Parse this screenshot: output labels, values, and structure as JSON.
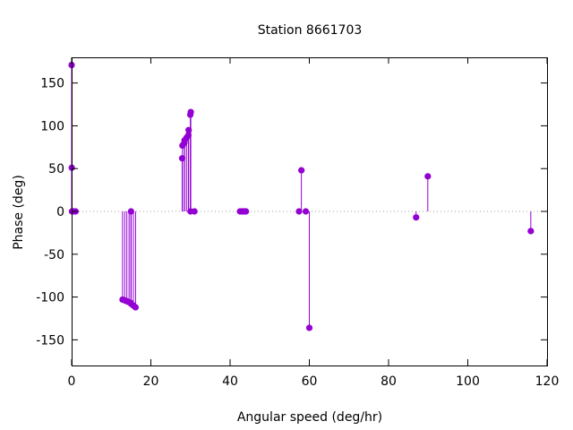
{
  "chart_data": {
    "type": "scatter",
    "style": "impulses-with-points",
    "title": "Station 8661703",
    "xlabel": "Angular speed (deg/hr)",
    "ylabel": "Phase (deg)",
    "xlim": [
      0,
      120
    ],
    "ylim": [
      -180,
      180
    ],
    "xticks": [
      0,
      20,
      40,
      60,
      80,
      100,
      120
    ],
    "yticks": [
      -150,
      -100,
      -50,
      0,
      50,
      100,
      150
    ],
    "zero_line": "dotted",
    "grid": false,
    "legend": "none",
    "color": "#9400d3",
    "points": [
      {
        "x": 0.0,
        "y": 171
      },
      {
        "x": 0.04,
        "y": 51
      },
      {
        "x": 0.08,
        "y": 0
      },
      {
        "x": 0.5,
        "y": 0
      },
      {
        "x": 1.0,
        "y": 0
      },
      {
        "x": 12.85,
        "y": -103
      },
      {
        "x": 13.4,
        "y": -104
      },
      {
        "x": 13.94,
        "y": -105
      },
      {
        "x": 14.5,
        "y": -106
      },
      {
        "x": 14.96,
        "y": -107
      },
      {
        "x": 15.0,
        "y": 0
      },
      {
        "x": 15.04,
        "y": -108
      },
      {
        "x": 15.59,
        "y": -110
      },
      {
        "x": 16.14,
        "y": -112
      },
      {
        "x": 27.9,
        "y": 62
      },
      {
        "x": 27.97,
        "y": 77
      },
      {
        "x": 28.44,
        "y": 80
      },
      {
        "x": 28.51,
        "y": 83
      },
      {
        "x": 28.99,
        "y": 86
      },
      {
        "x": 29.46,
        "y": 89
      },
      {
        "x": 29.53,
        "y": 95
      },
      {
        "x": 29.96,
        "y": 113
      },
      {
        "x": 30.0,
        "y": 0
      },
      {
        "x": 30.08,
        "y": 116
      },
      {
        "x": 31.0,
        "y": 0
      },
      {
        "x": 42.5,
        "y": 0
      },
      {
        "x": 43.0,
        "y": 0
      },
      {
        "x": 43.5,
        "y": 0
      },
      {
        "x": 44.0,
        "y": 0
      },
      {
        "x": 57.4,
        "y": 0
      },
      {
        "x": 58.0,
        "y": 48
      },
      {
        "x": 59.1,
        "y": 0
      },
      {
        "x": 60.0,
        "y": -136
      },
      {
        "x": 86.95,
        "y": -7
      },
      {
        "x": 89.9,
        "y": 41
      },
      {
        "x": 115.9,
        "y": -23
      }
    ]
  }
}
